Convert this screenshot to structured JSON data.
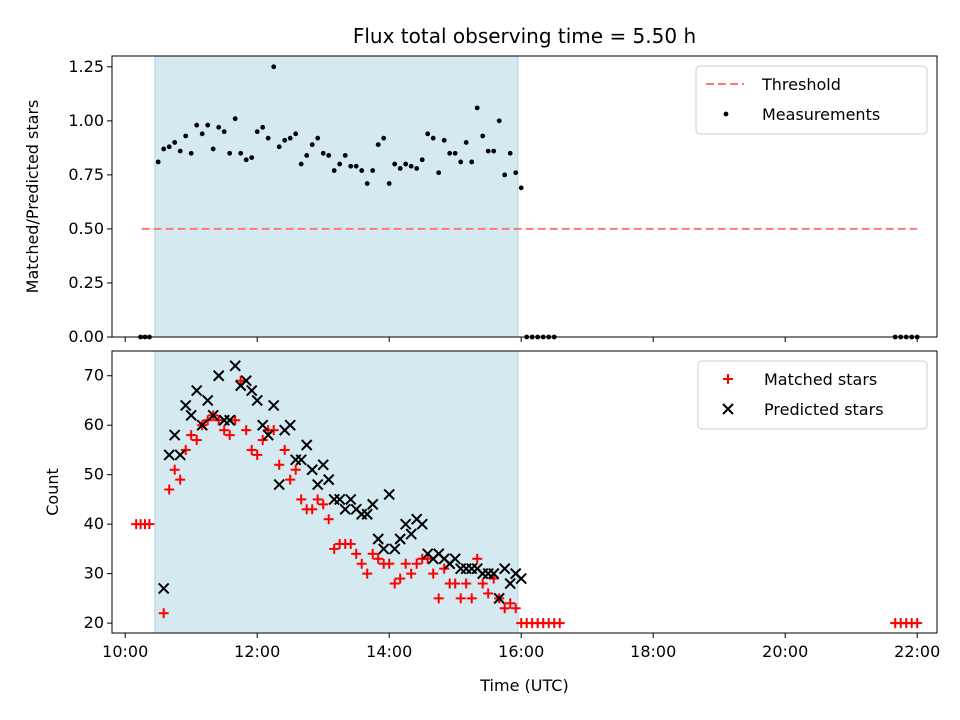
{
  "chart_data": [
    {
      "type": "scatter",
      "title": "Flux total observing time = 5.50 h",
      "xlabel": "",
      "ylabel": "Matched/Predicted stars",
      "xlim": [
        "10:00",
        "22:00"
      ],
      "ylim": [
        0,
        1.3
      ],
      "yticks": [
        0.0,
        0.25,
        0.5,
        0.75,
        1.0,
        1.25
      ],
      "ytick_labels": [
        "0.00",
        "0.25",
        "0.50",
        "0.75",
        "1.00",
        "1.25"
      ],
      "observing_window": {
        "start": "10:27",
        "end": "15:57",
        "color": "#d4eaf0"
      },
      "legend": {
        "placement": "upper right",
        "entries": [
          "Threshold",
          "Measurements"
        ]
      },
      "series": [
        {
          "name": "Threshold",
          "kind": "dashed-line",
          "color": "#ff7777",
          "points": [
            [
              "10:15",
              0.5
            ],
            [
              "22:00",
              0.5
            ]
          ]
        },
        {
          "name": "Measurements",
          "kind": "dot",
          "color": "#000000",
          "points": [
            [
              "10:14",
              0.0
            ],
            [
              "10:18",
              0.0
            ],
            [
              "10:22",
              0.0
            ],
            [
              "10:30",
              0.81
            ],
            [
              "10:35",
              0.87
            ],
            [
              "10:40",
              0.88
            ],
            [
              "10:45",
              0.9
            ],
            [
              "10:50",
              0.86
            ],
            [
              "10:55",
              0.93
            ],
            [
              "11:00",
              0.85
            ],
            [
              "11:05",
              0.98
            ],
            [
              "11:10",
              0.94
            ],
            [
              "11:15",
              0.98
            ],
            [
              "11:20",
              0.87
            ],
            [
              "11:25",
              0.97
            ],
            [
              "11:30",
              0.95
            ],
            [
              "11:35",
              0.85
            ],
            [
              "11:40",
              1.01
            ],
            [
              "11:45",
              0.85
            ],
            [
              "11:50",
              0.82
            ],
            [
              "11:55",
              0.83
            ],
            [
              "12:00",
              0.95
            ],
            [
              "12:05",
              0.97
            ],
            [
              "12:10",
              0.92
            ],
            [
              "12:15",
              1.25
            ],
            [
              "12:20",
              0.88
            ],
            [
              "12:25",
              0.91
            ],
            [
              "12:30",
              0.92
            ],
            [
              "12:35",
              0.94
            ],
            [
              "12:40",
              0.8
            ],
            [
              "12:45",
              0.84
            ],
            [
              "12:50",
              0.89
            ],
            [
              "12:55",
              0.92
            ],
            [
              "13:00",
              0.85
            ],
            [
              "13:05",
              0.84
            ],
            [
              "13:10",
              0.77
            ],
            [
              "13:15",
              0.8
            ],
            [
              "13:20",
              0.84
            ],
            [
              "13:25",
              0.79
            ],
            [
              "13:30",
              0.79
            ],
            [
              "13:35",
              0.77
            ],
            [
              "13:40",
              0.71
            ],
            [
              "13:45",
              0.77
            ],
            [
              "13:50",
              0.89
            ],
            [
              "13:55",
              0.92
            ],
            [
              "14:00",
              0.71
            ],
            [
              "14:05",
              0.8
            ],
            [
              "14:10",
              0.78
            ],
            [
              "14:15",
              0.8
            ],
            [
              "14:20",
              0.79
            ],
            [
              "14:25",
              0.78
            ],
            [
              "14:30",
              0.82
            ],
            [
              "14:35",
              0.94
            ],
            [
              "14:40",
              0.92
            ],
            [
              "14:45",
              0.76
            ],
            [
              "14:50",
              0.91
            ],
            [
              "14:55",
              0.85
            ],
            [
              "15:00",
              0.85
            ],
            [
              "15:05",
              0.81
            ],
            [
              "15:10",
              0.9
            ],
            [
              "15:15",
              0.81
            ],
            [
              "15:20",
              1.06
            ],
            [
              "15:25",
              0.93
            ],
            [
              "15:30",
              0.86
            ],
            [
              "15:35",
              0.86
            ],
            [
              "15:40",
              1.0
            ],
            [
              "15:45",
              0.75
            ],
            [
              "15:50",
              0.85
            ],
            [
              "15:55",
              0.76
            ],
            [
              "16:00",
              0.69
            ],
            [
              "16:05",
              0.0
            ],
            [
              "16:10",
              0.0
            ],
            [
              "16:15",
              0.0
            ],
            [
              "16:20",
              0.0
            ],
            [
              "16:25",
              0.0
            ],
            [
              "16:30",
              0.0
            ],
            [
              "21:40",
              0.0
            ],
            [
              "21:45",
              0.0
            ],
            [
              "21:50",
              0.0
            ],
            [
              "21:55",
              0.0
            ],
            [
              "22:00",
              0.0
            ]
          ]
        }
      ]
    },
    {
      "type": "scatter",
      "title": "",
      "xlabel": "Time (UTC)",
      "ylabel": "Count",
      "xlim": [
        "10:00",
        "22:00"
      ],
      "ylim": [
        18,
        75
      ],
      "yticks": [
        20,
        30,
        40,
        50,
        60,
        70
      ],
      "ytick_labels": [
        "20",
        "30",
        "40",
        "50",
        "60",
        "70"
      ],
      "xticks": [
        "10:00",
        "12:00",
        "14:00",
        "16:00",
        "18:00",
        "20:00",
        "22:00"
      ],
      "xtick_labels": [
        "10:00",
        "12:00",
        "14:00",
        "16:00",
        "18:00",
        "20:00",
        "22:00"
      ],
      "observing_window": {
        "start": "10:27",
        "end": "15:57",
        "color": "#d4eaf0"
      },
      "legend": {
        "placement": "upper right",
        "entries": [
          "Matched stars",
          "Predicted stars"
        ]
      },
      "series": [
        {
          "name": "Matched stars",
          "kind": "plus",
          "color": "#ff0000",
          "points": [
            [
              "10:10",
              40
            ],
            [
              "10:14",
              40
            ],
            [
              "10:18",
              40
            ],
            [
              "10:22",
              40
            ],
            [
              "10:35",
              22
            ],
            [
              "10:40",
              47
            ],
            [
              "10:45",
              51
            ],
            [
              "10:50",
              49
            ],
            [
              "10:55",
              55
            ],
            [
              "11:00",
              58
            ],
            [
              "11:05",
              57
            ],
            [
              "11:10",
              60
            ],
            [
              "11:15",
              61
            ],
            [
              "11:20",
              62
            ],
            [
              "11:25",
              61
            ],
            [
              "11:30",
              59
            ],
            [
              "11:35",
              58
            ],
            [
              "11:40",
              61
            ],
            [
              "11:45",
              69
            ],
            [
              "11:50",
              59
            ],
            [
              "11:55",
              55
            ],
            [
              "12:00",
              54
            ],
            [
              "12:05",
              57
            ],
            [
              "12:10",
              59
            ],
            [
              "12:15",
              59
            ],
            [
              "12:20",
              52
            ],
            [
              "12:25",
              55
            ],
            [
              "12:30",
              49
            ],
            [
              "12:35",
              51
            ],
            [
              "12:40",
              45
            ],
            [
              "12:45",
              43
            ],
            [
              "12:50",
              43
            ],
            [
              "12:55",
              45
            ],
            [
              "13:00",
              44
            ],
            [
              "13:05",
              41
            ],
            [
              "13:10",
              35
            ],
            [
              "13:15",
              36
            ],
            [
              "13:20",
              36
            ],
            [
              "13:25",
              36
            ],
            [
              "13:30",
              34
            ],
            [
              "13:35",
              32
            ],
            [
              "13:40",
              30
            ],
            [
              "13:45",
              34
            ],
            [
              "13:50",
              33
            ],
            [
              "13:55",
              32
            ],
            [
              "14:00",
              32
            ],
            [
              "14:05",
              28
            ],
            [
              "14:10",
              29
            ],
            [
              "14:15",
              32
            ],
            [
              "14:20",
              30
            ],
            [
              "14:25",
              32
            ],
            [
              "14:30",
              33
            ],
            [
              "14:35",
              33
            ],
            [
              "14:40",
              30
            ],
            [
              "14:45",
              25
            ],
            [
              "14:50",
              31
            ],
            [
              "14:55",
              28
            ],
            [
              "15:00",
              28
            ],
            [
              "15:05",
              25
            ],
            [
              "15:10",
              28
            ],
            [
              "15:15",
              25
            ],
            [
              "15:20",
              33
            ],
            [
              "15:25",
              28
            ],
            [
              "15:30",
              26
            ],
            [
              "15:35",
              29
            ],
            [
              "15:40",
              25
            ],
            [
              "15:45",
              23
            ],
            [
              "15:50",
              24
            ],
            [
              "15:55",
              23
            ],
            [
              "16:00",
              20
            ],
            [
              "16:05",
              20
            ],
            [
              "16:10",
              20
            ],
            [
              "16:15",
              20
            ],
            [
              "16:20",
              20
            ],
            [
              "16:25",
              20
            ],
            [
              "16:30",
              20
            ],
            [
              "16:35",
              20
            ],
            [
              "21:40",
              20
            ],
            [
              "21:45",
              20
            ],
            [
              "21:50",
              20
            ],
            [
              "21:55",
              20
            ],
            [
              "22:00",
              20
            ]
          ]
        },
        {
          "name": "Predicted stars",
          "kind": "cross",
          "color": "#000000",
          "points": [
            [
              "10:35",
              27
            ],
            [
              "10:40",
              54
            ],
            [
              "10:45",
              58
            ],
            [
              "10:50",
              54
            ],
            [
              "10:55",
              64
            ],
            [
              "11:00",
              62
            ],
            [
              "11:05",
              67
            ],
            [
              "11:10",
              60
            ],
            [
              "11:15",
              65
            ],
            [
              "11:20",
              62
            ],
            [
              "11:25",
              70
            ],
            [
              "11:30",
              61
            ],
            [
              "11:35",
              61
            ],
            [
              "11:40",
              72
            ],
            [
              "11:45",
              68
            ],
            [
              "11:50",
              69
            ],
            [
              "11:55",
              67
            ],
            [
              "12:00",
              65
            ],
            [
              "12:05",
              60
            ],
            [
              "12:10",
              58
            ],
            [
              "12:15",
              64
            ],
            [
              "12:20",
              48
            ],
            [
              "12:25",
              59
            ],
            [
              "12:30",
              60
            ],
            [
              "12:35",
              53
            ],
            [
              "12:40",
              53
            ],
            [
              "12:45",
              56
            ],
            [
              "12:50",
              51
            ],
            [
              "12:55",
              48
            ],
            [
              "13:00",
              52
            ],
            [
              "13:05",
              49
            ],
            [
              "13:10",
              45
            ],
            [
              "13:15",
              45
            ],
            [
              "13:20",
              43
            ],
            [
              "13:25",
              45
            ],
            [
              "13:30",
              43
            ],
            [
              "13:35",
              42
            ],
            [
              "13:40",
              42
            ],
            [
              "13:45",
              44
            ],
            [
              "13:50",
              37
            ],
            [
              "13:55",
              35
            ],
            [
              "14:00",
              46
            ],
            [
              "14:05",
              35
            ],
            [
              "14:10",
              37
            ],
            [
              "14:15",
              40
            ],
            [
              "14:20",
              38
            ],
            [
              "14:25",
              41
            ],
            [
              "14:30",
              40
            ],
            [
              "14:35",
              34
            ],
            [
              "14:40",
              33
            ],
            [
              "14:45",
              34
            ],
            [
              "14:50",
              33
            ],
            [
              "14:55",
              32
            ],
            [
              "15:00",
              33
            ],
            [
              "15:05",
              31
            ],
            [
              "15:10",
              31
            ],
            [
              "15:15",
              31
            ],
            [
              "15:20",
              31
            ],
            [
              "15:25",
              30
            ],
            [
              "15:30",
              30
            ],
            [
              "15:35",
              30
            ],
            [
              "15:40",
              25
            ],
            [
              "15:45",
              31
            ],
            [
              "15:50",
              28
            ],
            [
              "15:55",
              30
            ],
            [
              "16:00",
              29
            ]
          ]
        }
      ]
    }
  ]
}
